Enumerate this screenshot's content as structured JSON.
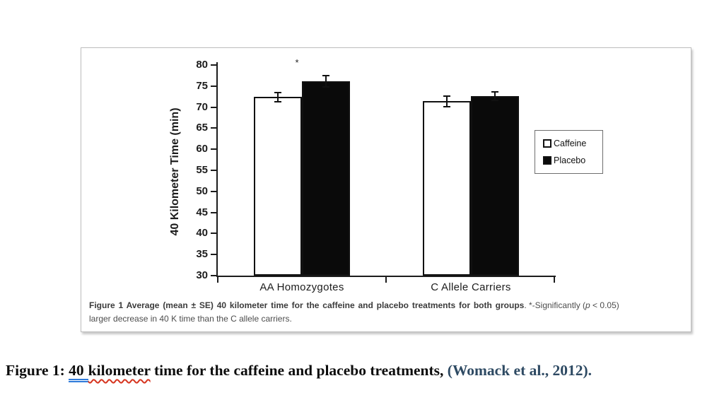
{
  "figure_panel": {
    "caption": {
      "bold": "Figure 1 Average (mean ± SE) 40 kilometer time for the caffeine and placebo treatments for both groups",
      "sep": ". *-Significantly (",
      "p_italic": "p",
      "after_p": " < 0.05)",
      "line2": "larger decrease in 40 K time than the C allele carriers."
    }
  },
  "chart_data": {
    "type": "bar",
    "categories": [
      "AA Homozygotes",
      "C Allele Carriers"
    ],
    "series": [
      {
        "name": "Caffeine",
        "fill": "#ffffff",
        "values": [
          72.4,
          71.4
        ],
        "se": [
          1.3,
          1.4
        ]
      },
      {
        "name": "Placebo",
        "fill": "#0a0a0a",
        "values": [
          76.2,
          72.6
        ],
        "se": [
          1.5,
          1.2
        ]
      }
    ],
    "title": "",
    "xlabel": "",
    "ylabel": "40 Kilometer Time (min)",
    "ylim": [
      30,
      80
    ],
    "ytick_step": 5,
    "grid": false,
    "legend_position": "right",
    "annotation": {
      "text": "*",
      "target_category": "AA Homozygotes"
    }
  },
  "document_caption": {
    "prefix": "Figure 1: ",
    "underlined_blue": "40",
    "underlined_red": "kilometer",
    "middle": " time for the caffeine and placebo treatments, ",
    "citation": "(Womack et al., 2012).",
    "citation_color": "#2e4a63",
    "grammar_underline_color": "#2f7bdb",
    "spelling_underline_color": "#d6341f"
  }
}
